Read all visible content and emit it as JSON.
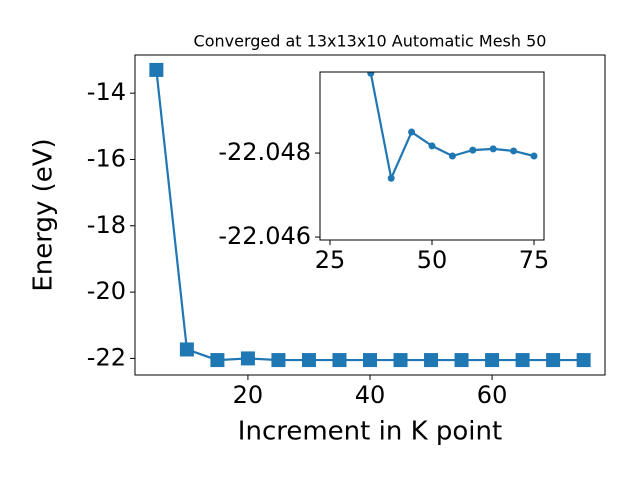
{
  "chart_data": [
    {
      "type": "line",
      "title": "Converged at 13x13x10 Automatic Mesh 50",
      "x_label": "Increment in K point",
      "y_label": "Energy (eV)",
      "series": [
        {
          "name": "main",
          "color": "#1f77b4",
          "marker": "square",
          "x": [
            5,
            10,
            15,
            20,
            25,
            30,
            35,
            40,
            45,
            50,
            55,
            60,
            65,
            70,
            75
          ],
          "values": [
            -13.3,
            -21.73,
            -22.05,
            -22.0,
            -22.05,
            -22.05,
            -22.05,
            -22.05,
            -22.05,
            -22.05,
            -22.05,
            -22.05,
            -22.05,
            -22.05,
            -22.05
          ]
        }
      ],
      "xlim": [
        1.5,
        78.5
      ],
      "ylim": [
        -22.5,
        -12.85
      ],
      "xticks": [
        20,
        40,
        60
      ],
      "yticks": [
        -22,
        -20,
        -18,
        -16,
        -14
      ]
    },
    {
      "type": "line",
      "series": [
        {
          "name": "inset",
          "color": "#1f77b4",
          "marker": "circle",
          "x": [
            35,
            40,
            45,
            50,
            55,
            60,
            65,
            70,
            75
          ],
          "values": [
            -22.0499,
            -22.0474,
            -22.0485,
            -22.04817,
            -22.04793,
            -22.04807,
            -22.0481,
            -22.04805,
            -22.04793
          ]
        }
      ],
      "xlim": [
        22.55,
        77.45
      ],
      "ylim": [
        -22.04593,
        -22.04993
      ],
      "xticks": [
        25,
        50,
        75
      ],
      "yticks": [
        -22.048,
        -22.046
      ]
    }
  ]
}
